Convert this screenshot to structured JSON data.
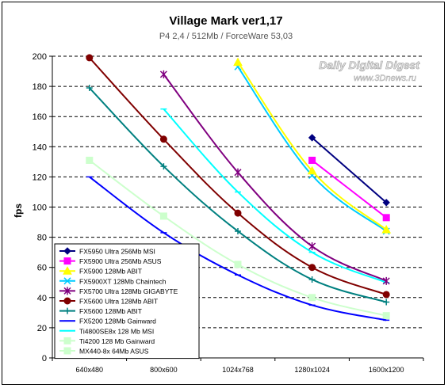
{
  "chart_data": {
    "type": "line",
    "title": "Village Mark ver1,17",
    "subtitle": "P4 2,4 / 512Mb / ForceWare 53,03",
    "watermark": "Daily Digital Digest",
    "watermark_url": "www.3Dnews.ru",
    "ylabel": "fps",
    "xlabel": "",
    "categories": [
      "640x480",
      "800x600",
      "1024x768",
      "1280x1024",
      "1600x1200"
    ],
    "ylim": [
      0,
      200
    ],
    "ytick_step": 20,
    "yticks": [
      "0",
      "20",
      "40",
      "60",
      "80",
      "100",
      "120",
      "140",
      "160",
      "180",
      "200"
    ],
    "grid": "horizontal dashed",
    "legend_position": "bottom-left",
    "series": [
      {
        "name": "FX5950 Ultra 256Mb MSI",
        "color": "#000080",
        "marker": "diamond",
        "values": [
          null,
          null,
          null,
          146,
          103
        ]
      },
      {
        "name": "FX5900 Ultra 256Mb ASUS",
        "color": "#ff00ff",
        "marker": "square",
        "values": [
          null,
          null,
          null,
          131,
          93
        ]
      },
      {
        "name": "FX5900 128Mb ABIT",
        "color": "#ffff00",
        "marker": "triangle",
        "values": [
          null,
          null,
          196,
          124,
          85
        ]
      },
      {
        "name": "FX5900XT 128Mb Chaintech",
        "color": "#00ccff",
        "marker": "x",
        "values": [
          null,
          null,
          193,
          121,
          84
        ]
      },
      {
        "name": "FX5700 Ultra 128Mb GIGABYTE",
        "color": "#800080",
        "marker": "star",
        "values": [
          null,
          188,
          123,
          74,
          51
        ]
      },
      {
        "name": "FX5600 Ultra 128Mb ABIT",
        "color": "#800000",
        "marker": "circle",
        "values": [
          199,
          145,
          96,
          60,
          42
        ]
      },
      {
        "name": "FX5600 128Mb ABIT",
        "color": "#008080",
        "marker": "plus",
        "values": [
          179,
          127,
          84,
          52,
          37
        ]
      },
      {
        "name": "FX5200 128Mb Gainward",
        "color": "#0000ff",
        "marker": "dash",
        "values": [
          120,
          83,
          55,
          35,
          25
        ]
      },
      {
        "name": "Ti4800SE8x 128 Mb MSI",
        "color": "#00ffff",
        "marker": "dash",
        "values": [
          null,
          165,
          110,
          70,
          50
        ]
      },
      {
        "name": "Ti4200 128 Mb Gainward",
        "color": "#ccffcc",
        "marker": "square",
        "values": [
          131,
          94,
          62,
          40,
          28
        ]
      },
      {
        "name": "MX440-8x 64Mb ASUS",
        "color": "#ccffcc",
        "marker": "square",
        "values": [
          null,
          null,
          null,
          null,
          null
        ]
      }
    ]
  }
}
